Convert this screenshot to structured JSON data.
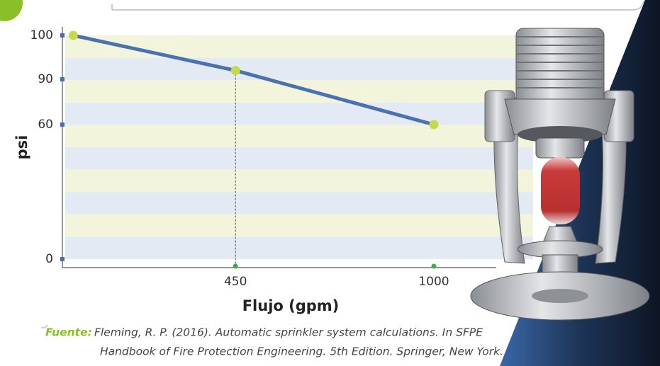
{
  "chart_data": {
    "type": "line",
    "y_label": "psi",
    "x_label": "Flujo (gpm)",
    "x": [
      0,
      450,
      1000
    ],
    "series": [
      {
        "color": "#4a72b0",
        "values": [
          100,
          92,
          60
        ]
      }
    ],
    "marker_color": "#c6d94a",
    "xlim": [
      -30,
      1000
    ],
    "xticks": [
      450,
      1000
    ],
    "ylim": [
      0,
      100
    ],
    "yticks": [
      0,
      60,
      90,
      100
    ],
    "source_label": "Fuente:",
    "source_lines": [
      "Fleming, R. P. (2016). Automatic sprinkler system calculations. In SFPE",
      "Handbook of Fire Protection Engineering. 5th Edition. Springer, New York."
    ]
  }
}
